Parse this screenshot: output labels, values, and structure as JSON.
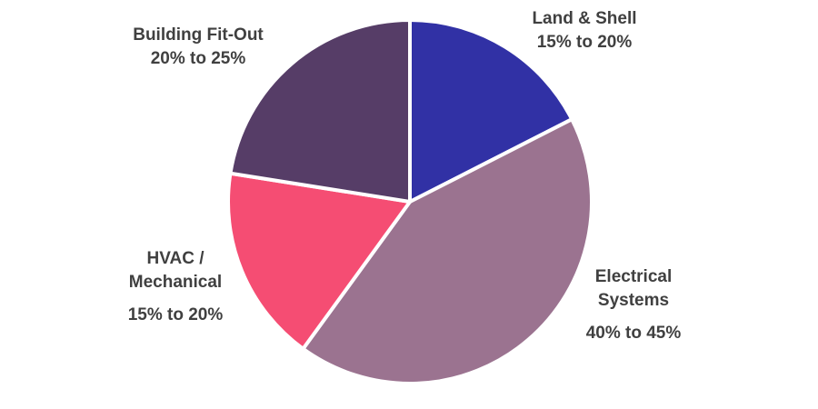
{
  "chart_data": {
    "type": "pie",
    "title": "",
    "start_angle_deg": 0,
    "direction": "clockwise",
    "slices": [
      {
        "label_lines": [
          "Land & Shell"
        ],
        "range_text": "15% to 20%",
        "value": 17.5,
        "color": "#3131a5"
      },
      {
        "label_lines": [
          "Electrical",
          "Systems"
        ],
        "range_text": "40% to 45%",
        "value": 42.5,
        "color": "#9b7390"
      },
      {
        "label_lines": [
          "HVAC /",
          "Mechanical"
        ],
        "range_text": "15% to 20%",
        "value": 17.5,
        "color": "#f54d73"
      },
      {
        "label_lines": [
          "Building Fit-Out"
        ],
        "range_text": "20% to 25%",
        "value": 22.5,
        "color": "#563d67"
      }
    ]
  }
}
